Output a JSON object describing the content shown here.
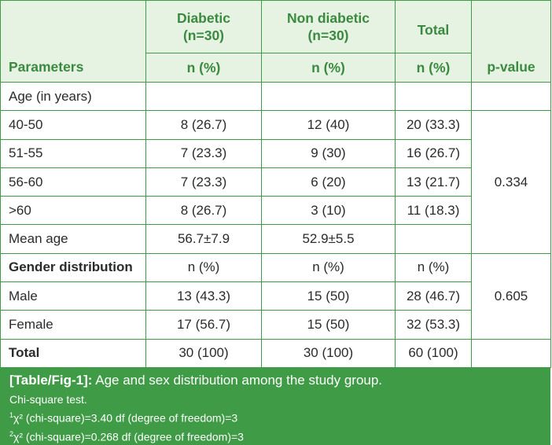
{
  "table": {
    "header": {
      "diabetic": "Diabetic (n=30)",
      "non_diabetic": "Non diabetic (n=30)",
      "total": "Total",
      "parameters": "Parameters",
      "n_pct_1": "n (%)",
      "n_pct_2": "n (%)",
      "n_pct_3": "n (%)",
      "p_value": "p-value"
    },
    "age_section": "Age (in years)",
    "age_rows": [
      {
        "label": "40-50",
        "diabetic": "8 (26.7)",
        "non_diabetic": "12 (40)",
        "total": "20 (33.3)"
      },
      {
        "label": "51-55",
        "diabetic": "7 (23.3)",
        "non_diabetic": "9 (30)",
        "total": "16 (26.7)"
      },
      {
        "label": "56-60",
        "diabetic": "7 (23.3)",
        "non_diabetic": "6 (20)",
        "total": "13 (21.7)"
      },
      {
        "label": ">60",
        "diabetic": "8 (26.7)",
        "non_diabetic": "3 (10)",
        "total": "11 (18.3)"
      }
    ],
    "age_p_value": "0.334",
    "mean_age": {
      "label": "Mean age",
      "diabetic": "56.7±7.9",
      "non_diabetic": "52.9±5.5"
    },
    "gender_section": {
      "label": "Gender distribution",
      "diabetic": "n (%)",
      "non_diabetic": "n (%)",
      "total": "n (%)"
    },
    "gender_rows": [
      {
        "label": "Male",
        "diabetic": "13 (43.3)",
        "non_diabetic": "15 (50)",
        "total": "28 (46.7)"
      },
      {
        "label": "Female",
        "diabetic": "17 (56.7)",
        "non_diabetic": "15 (50)",
        "total": "32 (53.3)"
      }
    ],
    "gender_p_value": "0.605",
    "total_row": {
      "label": "Total",
      "diabetic": "30 (100)",
      "non_diabetic": "30 (100)",
      "total": "60 (100)"
    }
  },
  "caption": {
    "title_bold": "[Table/Fig-1]:",
    "title_rest": " Age and sex distribution among the study group.",
    "line1": "Chi-square test.",
    "fn1_sup": "1",
    "fn1_text": "χ² (chi-square)=3.40 df (degree of freedom)=3",
    "fn2_sup": "2",
    "fn2_text": "χ² (chi-square)=0.268 df (degree of freedom)=3"
  }
}
